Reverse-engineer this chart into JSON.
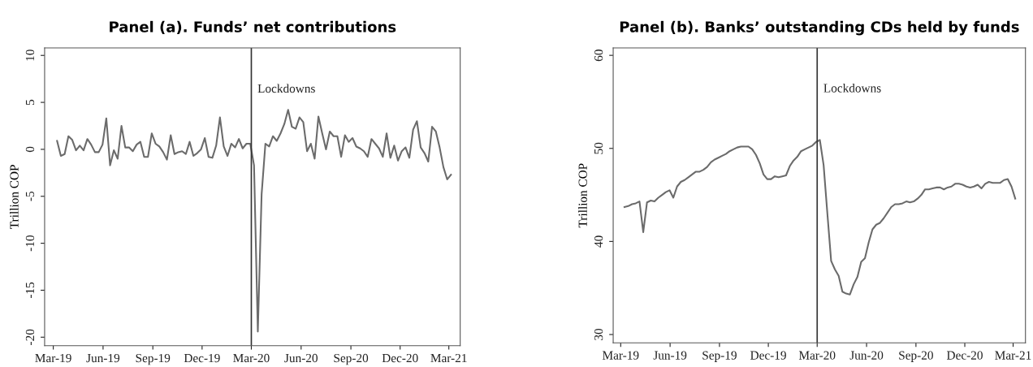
{
  "chart_data": [
    {
      "type": "line",
      "title": "Panel (a). Funds’ net contributions",
      "ylabel": "Trillion COP",
      "color": "#6b6b6b",
      "grid": false,
      "x": [
        "2019-03-08",
        "2019-03-15",
        "2019-03-22",
        "2019-03-29",
        "2019-04-05",
        "2019-04-12",
        "2019-04-19",
        "2019-04-26",
        "2019-05-03",
        "2019-05-10",
        "2019-05-17",
        "2019-05-24",
        "2019-05-31",
        "2019-06-07",
        "2019-06-14",
        "2019-06-21",
        "2019-06-28",
        "2019-07-05",
        "2019-07-12",
        "2019-07-19",
        "2019-07-26",
        "2019-08-02",
        "2019-08-09",
        "2019-08-16",
        "2019-08-23",
        "2019-08-30",
        "2019-09-06",
        "2019-09-13",
        "2019-09-20",
        "2019-09-27",
        "2019-10-04",
        "2019-10-11",
        "2019-10-18",
        "2019-10-25",
        "2019-11-01",
        "2019-11-08",
        "2019-11-15",
        "2019-11-22",
        "2019-11-29",
        "2019-12-06",
        "2019-12-13",
        "2019-12-20",
        "2019-12-27",
        "2020-01-03",
        "2020-01-10",
        "2020-01-17",
        "2020-01-24",
        "2020-01-31",
        "2020-02-07",
        "2020-02-14",
        "2020-02-21",
        "2020-02-28",
        "2020-03-06",
        "2020-03-13",
        "2020-03-20",
        "2020-03-27",
        "2020-04-03",
        "2020-04-10",
        "2020-04-17",
        "2020-04-24",
        "2020-05-01",
        "2020-05-08",
        "2020-05-15",
        "2020-05-22",
        "2020-05-29",
        "2020-06-05",
        "2020-06-12",
        "2020-06-19",
        "2020-06-26",
        "2020-07-03",
        "2020-07-10",
        "2020-07-17",
        "2020-07-24",
        "2020-07-31",
        "2020-08-07",
        "2020-08-14",
        "2020-08-21",
        "2020-08-28",
        "2020-09-04",
        "2020-09-11",
        "2020-09-18",
        "2020-09-25",
        "2020-10-02",
        "2020-10-09",
        "2020-10-16",
        "2020-10-23",
        "2020-10-30",
        "2020-11-06",
        "2020-11-13",
        "2020-11-20",
        "2020-11-27",
        "2020-12-04",
        "2020-12-11",
        "2020-12-18",
        "2020-12-25",
        "2021-01-01",
        "2021-01-08",
        "2021-01-15",
        "2021-01-22",
        "2021-01-29",
        "2021-02-05",
        "2021-02-12",
        "2021-02-19",
        "2021-02-26",
        "2021-03-05"
      ],
      "values": [
        0.9,
        -0.7,
        -0.5,
        1.4,
        1.0,
        -0.1,
        0.4,
        -0.1,
        1.1,
        0.5,
        -0.3,
        -0.3,
        0.5,
        3.3,
        -1.7,
        -0.1,
        -1.0,
        2.5,
        0.2,
        0.2,
        -0.2,
        0.5,
        0.8,
        -0.8,
        -0.8,
        1.7,
        0.6,
        0.3,
        -0.3,
        -1.1,
        1.5,
        -0.5,
        -0.3,
        -0.2,
        -0.5,
        0.8,
        -0.7,
        -0.4,
        0.0,
        1.2,
        -0.8,
        -0.9,
        0.4,
        3.4,
        0.3,
        -0.7,
        0.6,
        0.2,
        1.1,
        0.1,
        0.6,
        0.6,
        -1.7,
        -19.4,
        -4.8,
        0.6,
        0.3,
        1.4,
        0.9,
        1.7,
        2.7,
        4.2,
        2.4,
        2.2,
        3.4,
        2.9,
        -0.2,
        0.6,
        -1.0,
        3.5,
        1.7,
        0.0,
        1.9,
        1.4,
        1.4,
        -0.8,
        1.5,
        0.8,
        1.2,
        0.3,
        0.1,
        -0.2,
        -0.8,
        1.1,
        0.6,
        0.1,
        -0.8,
        1.7,
        -0.9,
        0.4,
        -1.2,
        -0.2,
        0.2,
        -0.9,
        2.1,
        3.0,
        0.2,
        -0.4,
        -1.3,
        2.4,
        1.9,
        0.2,
        -1.9,
        -3.2,
        -2.7
      ],
      "xlim": [
        "2019-02-13",
        "2021-03-22"
      ],
      "ylim": [
        -20.9,
        10.8
      ],
      "xticks": [
        {
          "value": "2019-03-01",
          "label": "Mar-19"
        },
        {
          "value": "2019-06-01",
          "label": "Jun-19"
        },
        {
          "value": "2019-09-01",
          "label": "Sep-19"
        },
        {
          "value": "2019-12-01",
          "label": "Dec-19"
        },
        {
          "value": "2020-03-01",
          "label": "Mar-20"
        },
        {
          "value": "2020-06-01",
          "label": "Jun-20"
        },
        {
          "value": "2020-09-01",
          "label": "Sep-20"
        },
        {
          "value": "2020-12-01",
          "label": "Dec-20"
        },
        {
          "value": "2021-03-01",
          "label": "Mar-21"
        }
      ],
      "yticks": [
        -20,
        -15,
        -10,
        -5,
        0,
        5,
        10
      ],
      "ref_lines": [
        {
          "axis": "x",
          "value": "2020-03-01",
          "label": "Lockdowns",
          "color": "#333333"
        }
      ]
    },
    {
      "type": "line",
      "title": "Panel (b). Banks’ outstanding CDs held by funds",
      "ylabel": "Trillion COP",
      "color": "#6b6b6b",
      "grid": false,
      "x": [
        "2019-03-08",
        "2019-03-15",
        "2019-03-22",
        "2019-03-29",
        "2019-04-05",
        "2019-04-12",
        "2019-04-19",
        "2019-04-26",
        "2019-05-03",
        "2019-05-10",
        "2019-05-17",
        "2019-05-24",
        "2019-05-31",
        "2019-06-07",
        "2019-06-14",
        "2019-06-21",
        "2019-06-28",
        "2019-07-05",
        "2019-07-12",
        "2019-07-19",
        "2019-07-26",
        "2019-08-02",
        "2019-08-09",
        "2019-08-16",
        "2019-08-23",
        "2019-08-30",
        "2019-09-06",
        "2019-09-13",
        "2019-09-20",
        "2019-09-27",
        "2019-10-04",
        "2019-10-11",
        "2019-10-18",
        "2019-10-25",
        "2019-11-01",
        "2019-11-08",
        "2019-11-15",
        "2019-11-22",
        "2019-11-29",
        "2019-12-06",
        "2019-12-13",
        "2019-12-20",
        "2019-12-27",
        "2020-01-03",
        "2020-01-10",
        "2020-01-17",
        "2020-01-24",
        "2020-01-31",
        "2020-02-07",
        "2020-02-14",
        "2020-02-21",
        "2020-02-28",
        "2020-03-06",
        "2020-03-13",
        "2020-03-20",
        "2020-03-27",
        "2020-04-03",
        "2020-04-10",
        "2020-04-17",
        "2020-04-24",
        "2020-05-01",
        "2020-05-08",
        "2020-05-15",
        "2020-05-22",
        "2020-05-29",
        "2020-06-05",
        "2020-06-12",
        "2020-06-19",
        "2020-06-26",
        "2020-07-03",
        "2020-07-10",
        "2020-07-17",
        "2020-07-24",
        "2020-07-31",
        "2020-08-07",
        "2020-08-14",
        "2020-08-21",
        "2020-08-28",
        "2020-09-04",
        "2020-09-11",
        "2020-09-18",
        "2020-09-25",
        "2020-10-02",
        "2020-10-09",
        "2020-10-16",
        "2020-10-23",
        "2020-10-30",
        "2020-11-06",
        "2020-11-13",
        "2020-11-20",
        "2020-11-27",
        "2020-12-04",
        "2020-12-11",
        "2020-12-18",
        "2020-12-25",
        "2021-01-01",
        "2021-01-08",
        "2021-01-15",
        "2021-01-22",
        "2021-01-29",
        "2021-02-05",
        "2021-02-12",
        "2021-02-19",
        "2021-02-26",
        "2021-03-05"
      ],
      "values": [
        43.7,
        43.8,
        44.0,
        44.1,
        44.3,
        41.0,
        44.2,
        44.4,
        44.3,
        44.7,
        45.0,
        45.3,
        45.5,
        44.7,
        45.9,
        46.4,
        46.6,
        46.9,
        47.2,
        47.5,
        47.5,
        47.7,
        48.0,
        48.5,
        48.8,
        49.0,
        49.2,
        49.4,
        49.7,
        49.9,
        50.1,
        50.2,
        50.2,
        50.2,
        49.9,
        49.3,
        48.4,
        47.2,
        46.7,
        46.7,
        47.0,
        46.9,
        47.0,
        47.1,
        48.1,
        48.7,
        49.1,
        49.7,
        49.9,
        50.1,
        50.3,
        50.7,
        50.9,
        48.2,
        43.0,
        37.9,
        37.0,
        36.3,
        34.6,
        34.4,
        34.3,
        35.4,
        36.2,
        37.8,
        38.2,
        39.9,
        41.3,
        41.8,
        42.0,
        42.5,
        43.1,
        43.7,
        44.0,
        44.0,
        44.1,
        44.3,
        44.2,
        44.3,
        44.6,
        45.0,
        45.6,
        45.6,
        45.7,
        45.8,
        45.8,
        45.6,
        45.8,
        45.9,
        46.2,
        46.2,
        46.1,
        45.9,
        45.8,
        45.9,
        46.1,
        45.7,
        46.2,
        46.4,
        46.3,
        46.3,
        46.3,
        46.6,
        46.7,
        45.9,
        44.6
      ],
      "xlim": [
        "2019-02-15",
        "2021-03-24"
      ],
      "ylim": [
        29.1,
        60.8
      ],
      "xticks": [
        {
          "value": "2019-03-01",
          "label": "Mar-19"
        },
        {
          "value": "2019-06-01",
          "label": "Jun-19"
        },
        {
          "value": "2019-09-01",
          "label": "Sep-19"
        },
        {
          "value": "2019-12-01",
          "label": "Dec-19"
        },
        {
          "value": "2020-03-01",
          "label": "Mar-20"
        },
        {
          "value": "2020-06-01",
          "label": "Jun-20"
        },
        {
          "value": "2020-09-01",
          "label": "Sep-20"
        },
        {
          "value": "2020-12-01",
          "label": "Dec-20"
        },
        {
          "value": "2021-03-01",
          "label": "Mar-21"
        }
      ],
      "yticks": [
        30,
        40,
        50,
        60
      ],
      "ref_lines": [
        {
          "axis": "x",
          "value": "2020-03-01",
          "label": "Lockdowns",
          "color": "#333333"
        }
      ]
    }
  ]
}
